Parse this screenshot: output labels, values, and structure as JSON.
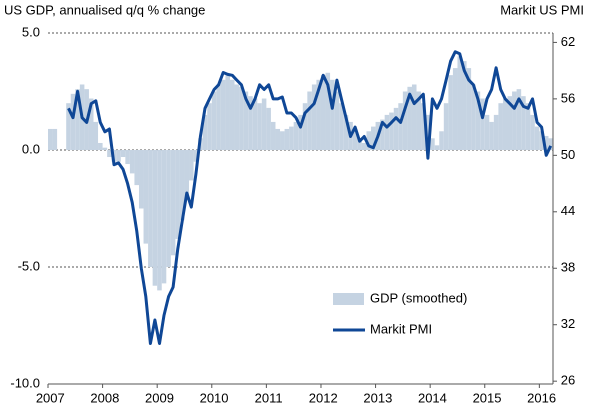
{
  "chart_data": {
    "type": "bar_line",
    "y_label": "US GDP, annualised q/q % change",
    "y2_label": "Markit US PMI",
    "categories": [
      "2007",
      null,
      null,
      null,
      null,
      null,
      null,
      null,
      null,
      null,
      null,
      null,
      "2008",
      null,
      null,
      null,
      null,
      null,
      null,
      null,
      null,
      null,
      null,
      null,
      "2009",
      null,
      null,
      null,
      null,
      null,
      null,
      null,
      null,
      null,
      null,
      null,
      "2010",
      null,
      null,
      null,
      null,
      null,
      null,
      null,
      null,
      null,
      null,
      null,
      "2011",
      null,
      null,
      null,
      null,
      null,
      null,
      null,
      null,
      null,
      null,
      null,
      "2012",
      null,
      null,
      null,
      null,
      null,
      null,
      null,
      null,
      null,
      null,
      null,
      "2013",
      null,
      null,
      null,
      null,
      null,
      null,
      null,
      null,
      null,
      null,
      null,
      "2014",
      null,
      null,
      null,
      null,
      null,
      null,
      null,
      null,
      null,
      null,
      null,
      "2015",
      null,
      null,
      null,
      null,
      null,
      null,
      null,
      null,
      null,
      null,
      null,
      "2016",
      null,
      null
    ],
    "series": [
      {
        "name": "GDP (smoothed)",
        "type": "bar",
        "axis": "y",
        "color": "#c5d3e2",
        "values": [
          0.9,
          0.9,
          0,
          0,
          2.0,
          2.4,
          2.6,
          2.8,
          2.6,
          2.2,
          1.2,
          0.3,
          0.1,
          -0.3,
          -0.5,
          -0.5,
          -0.3,
          -0.6,
          -1.0,
          -1.5,
          -2.5,
          -4.0,
          -5.0,
          -5.8,
          -6.0,
          -5.7,
          -5.0,
          -4.5,
          -3.8,
          -3.0,
          -2.0,
          -1.3,
          -0.5,
          0.5,
          1.5,
          2.0,
          2.5,
          2.8,
          3.0,
          3.2,
          3.0,
          2.8,
          2.7,
          2.5,
          2.3,
          2.2,
          2.0,
          2.2,
          1.8,
          1.2,
          0.9,
          0.8,
          0.9,
          1.0,
          1.2,
          1.5,
          2.0,
          2.5,
          2.8,
          3.0,
          3.2,
          3.3,
          3.0,
          2.5,
          2.0,
          1.5,
          1.2,
          0.8,
          0.5,
          0.3,
          0.8,
          1.0,
          1.2,
          1.3,
          1.5,
          1.6,
          1.8,
          2.0,
          2.5,
          2.7,
          2.8,
          2.5,
          2.0,
          1.5,
          0.5,
          0.2,
          0.8,
          2.0,
          3.2,
          3.5,
          4.0,
          3.8,
          3.5,
          2.8,
          2.5,
          2.2,
          1.5,
          1.2,
          1.5,
          2.0,
          2.2,
          2.3,
          2.5,
          2.6,
          2.3,
          2.0,
          1.5,
          1.0,
          0.8,
          0.6,
          0.5
        ]
      },
      {
        "name": "Markit PMI",
        "type": "line",
        "axis": "y2",
        "color": "#0f4796",
        "values": [
          null,
          null,
          null,
          null,
          55,
          54,
          56.8,
          54,
          53.5,
          55.5,
          55.8,
          53.5,
          52.5,
          52.8,
          49,
          49.2,
          48.5,
          47,
          45,
          42,
          38,
          35,
          30,
          32.5,
          30,
          33,
          35,
          36,
          40,
          43,
          46,
          44.5,
          48,
          52,
          55,
          56,
          57,
          57.5,
          58.8,
          58.6,
          58.5,
          58,
          57.5,
          56,
          55,
          56,
          57.5,
          57,
          57.5,
          56,
          56,
          56.2,
          54.5,
          54.5,
          54,
          53,
          54.5,
          55,
          55.5,
          57,
          58.5,
          57.5,
          55,
          58,
          56,
          54,
          52,
          53,
          51.5,
          52,
          51,
          50.8,
          52,
          53.5,
          53,
          53.5,
          54,
          53.5,
          55,
          56.5,
          55.5,
          56,
          56.5,
          49.7,
          56,
          55,
          56,
          58,
          60,
          61,
          60.8,
          59,
          58,
          57.5,
          56,
          54,
          56,
          57,
          59.3,
          57,
          56,
          55.5,
          55,
          56,
          55.2,
          55,
          56,
          53.5,
          53,
          50,
          51
        ]
      }
    ],
    "ylim": [
      -10,
      5
    ],
    "yticks": [
      {
        "value": 5,
        "label": "5.0"
      },
      {
        "value": 0,
        "label": "0.0"
      },
      {
        "value": -5,
        "label": "-5.0"
      },
      {
        "value": -10,
        "label": "-10.0"
      }
    ],
    "y2lim": [
      25.7,
      63
    ],
    "y2ticks": [
      26,
      32,
      38,
      44,
      50,
      56,
      62
    ],
    "grid": true,
    "legend": "lower-right"
  }
}
